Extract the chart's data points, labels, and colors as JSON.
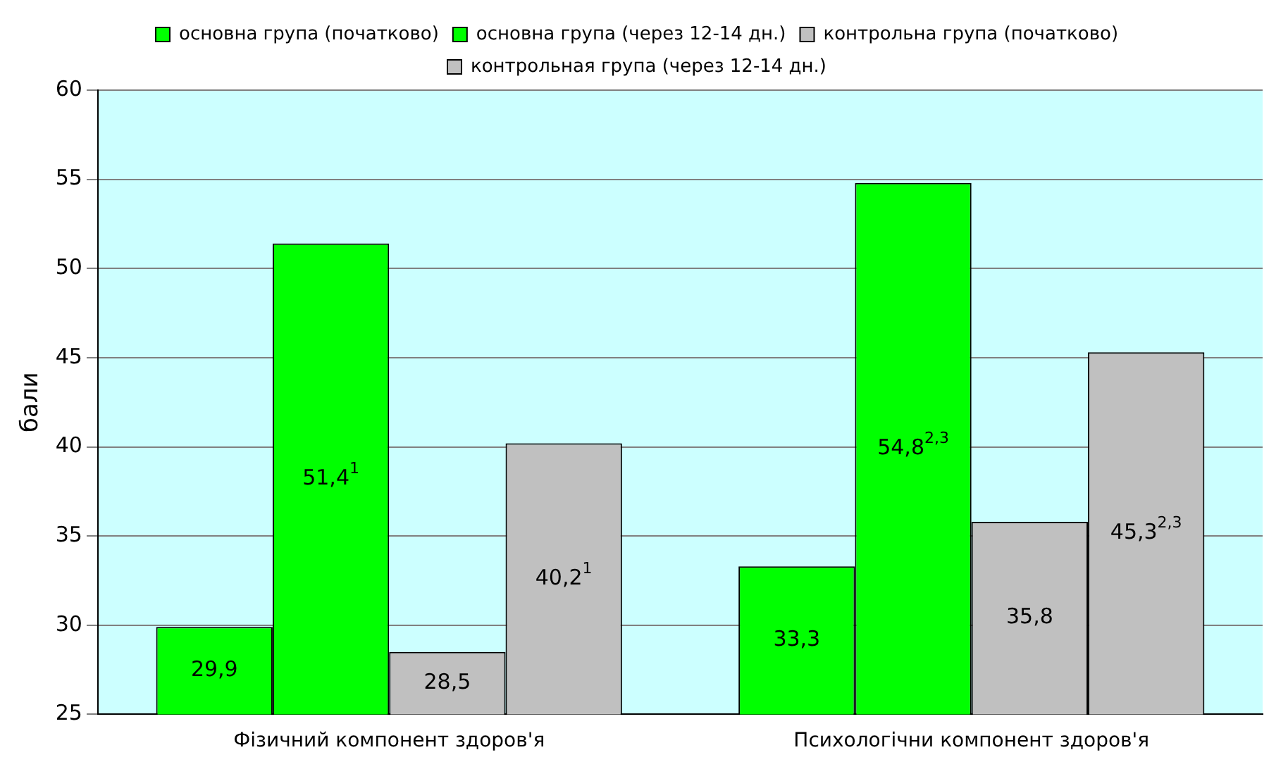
{
  "chart_data": {
    "type": "bar",
    "ylabel": "бали",
    "categories": [
      "Фізичний компонент здоров'я",
      "Психологічни компонент здоров'я"
    ],
    "series": [
      {
        "name": "основна група (початково)",
        "color": "#00ff00",
        "values": [
          29.9,
          33.3
        ],
        "value_labels": [
          "29,9",
          "33,3"
        ]
      },
      {
        "name": "основна група (через 12-14 дн.)",
        "color": "#00ff00",
        "values": [
          51.4,
          54.8
        ],
        "value_labels": [
          "51,4$^{1}$",
          "54,8$^{2,3}$"
        ]
      },
      {
        "name": "контрольна група (початково)",
        "color": "#c0c0c0",
        "values": [
          28.5,
          35.8
        ],
        "value_labels": [
          "28,5",
          "35,8"
        ]
      },
      {
        "name": "контрольная група (через 12-14 дн.)",
        "color": "#c0c0c0",
        "values": [
          40.2,
          45.3
        ],
        "value_labels": [
          "40,2$^{1}$",
          "45,3$^{2,3}$"
        ]
      }
    ],
    "ylim": [
      25,
      60
    ],
    "yticks": [
      25,
      30,
      35,
      40,
      45,
      50,
      55,
      60
    ],
    "grid": "y",
    "legend": "top"
  }
}
